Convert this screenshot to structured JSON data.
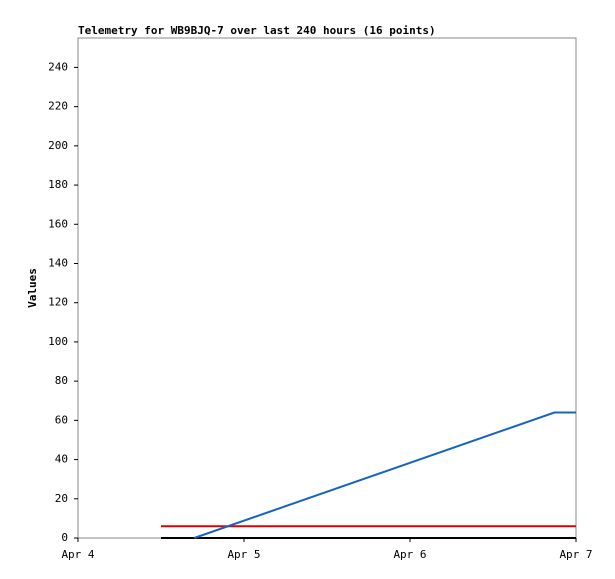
{
  "chart_data": {
    "type": "line",
    "title": "Telemetry for WB9BJQ-7 over last 240 hours (16 points)",
    "y_label": "Values",
    "xlim": [
      4,
      7
    ],
    "xticks": [
      {
        "value": 4,
        "label": "Apr 4"
      },
      {
        "value": 5,
        "label": "Apr 5"
      },
      {
        "value": 6,
        "label": "Apr 6"
      },
      {
        "value": 7,
        "label": "Apr 7"
      }
    ],
    "ylim": [
      0,
      255
    ],
    "yticks": [
      0,
      20,
      40,
      60,
      80,
      100,
      120,
      140,
      160,
      180,
      200,
      220,
      240
    ],
    "grid": false,
    "series": [
      {
        "color": "#000000",
        "x": [
          4.5,
          7
        ],
        "values": [
          0,
          0
        ]
      },
      {
        "color": "#e00000",
        "x": [
          4.5,
          7
        ],
        "values": [
          6,
          6
        ]
      },
      {
        "color": "#1565c0",
        "x": [
          4.7,
          6.87,
          7
        ],
        "values": [
          0,
          64,
          64
        ]
      }
    ]
  }
}
